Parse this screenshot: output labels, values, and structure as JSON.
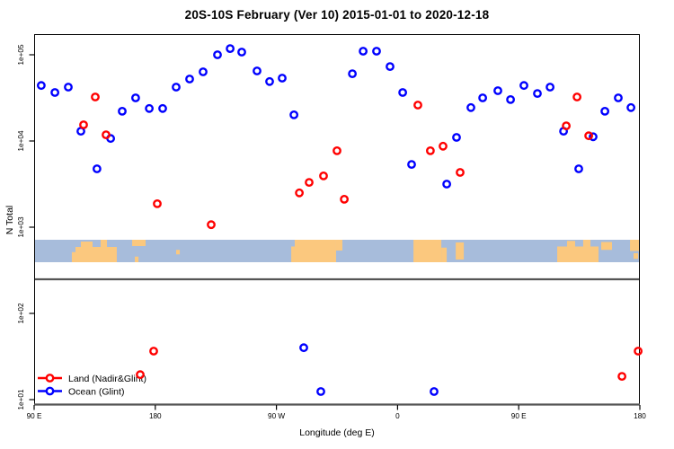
{
  "title": "20S-10S February (Ver 10)   2015-01-01 to 2020-12-18",
  "x_axis": {
    "label": "Longitude (deg E)",
    "ticks": [
      {
        "label": "90 E",
        "lon": 90
      },
      {
        "label": "180",
        "lon": 180
      },
      {
        "label": "90 W",
        "lon": 270
      },
      {
        "label": "0",
        "lon": 360
      },
      {
        "label": "90 E",
        "lon": 450
      },
      {
        "label": "180",
        "lon": 540
      }
    ]
  },
  "y_axis": {
    "label": "N Total",
    "ticks": [
      {
        "label": "1e+05",
        "value": 100000
      },
      {
        "label": "1e+04",
        "value": 10000
      },
      {
        "label": "1e+03",
        "value": 1000
      },
      {
        "label": "1e+02",
        "value": 100
      },
      {
        "label": "1e+01",
        "value": 10
      }
    ]
  },
  "legend": [
    {
      "label": "Land (Nadir&Glint)",
      "color": "#ff0000"
    },
    {
      "label": "Ocean (Glint)",
      "color": "#0000ff"
    }
  ],
  "colors": {
    "land_series": "#ff0000",
    "ocean_series": "#0000ff",
    "map_ocean": "#a7bcdb",
    "map_land": "#fbc87e",
    "axis": "#000000",
    "separator": "#555555"
  },
  "map_strip": {
    "note": "land blocks as [lon0, lon1, fracTop, fracBottom] within the strip band",
    "land_blocks": [
      [
        118.0,
        120.7,
        0.55,
        1.0
      ],
      [
        120.7,
        151.4,
        0.32,
        1.0
      ],
      [
        124.7,
        133.4,
        0.08,
        0.32
      ],
      [
        139.4,
        144.1,
        0.0,
        0.32
      ],
      [
        162.8,
        172.8,
        0.0,
        0.28
      ],
      [
        164.8,
        167.5,
        0.75,
        1.0
      ],
      [
        195.5,
        198.2,
        0.45,
        0.65
      ],
      [
        281.0,
        283.6,
        0.3,
        1.0
      ],
      [
        283.6,
        314.3,
        0.0,
        1.0
      ],
      [
        314.3,
        319.0,
        0.0,
        0.48
      ],
      [
        371.8,
        392.5,
        0.0,
        1.0
      ],
      [
        392.5,
        396.5,
        0.35,
        1.0
      ],
      [
        403.2,
        409.2,
        0.12,
        0.88
      ],
      [
        478.6,
        509.3,
        0.3,
        1.0
      ],
      [
        485.9,
        491.9,
        0.05,
        0.3
      ],
      [
        497.9,
        503.3,
        0.0,
        0.3
      ],
      [
        511.3,
        519.3,
        0.1,
        0.45
      ],
      [
        532.7,
        540.0,
        0.0,
        0.5
      ],
      [
        535.3,
        538.7,
        0.6,
        0.85
      ]
    ]
  },
  "chart_data": {
    "type": "scatter",
    "title": "20S-10S February (Ver 10)   2015-01-01 to 2020-12-18",
    "xlabel": "Longitude (deg E)",
    "ylabel": "N Total",
    "x_axis_degrees": [
      90,
      540
    ],
    "log_y": true,
    "y_tick_values": [
      10,
      100,
      1000,
      10000,
      100000
    ],
    "legend_position": "bottom-left",
    "series": [
      {
        "name": "Land (Nadir&Glint)",
        "color": "#ff0000",
        "points": [
          [
            126.7,
            15400
          ],
          [
            135.4,
            32400
          ],
          [
            143.4,
            11800
          ],
          [
            181.5,
            1870
          ],
          [
            221.5,
            1070
          ],
          [
            287.0,
            2500
          ],
          [
            294.3,
            3310
          ],
          [
            305.0,
            3930
          ],
          [
            315.0,
            7700
          ],
          [
            320.4,
            2110
          ],
          [
            375.1,
            26100
          ],
          [
            384.4,
            7700
          ],
          [
            393.8,
            8700
          ],
          [
            406.5,
            4320
          ],
          [
            485.3,
            15000
          ],
          [
            493.3,
            32400
          ],
          [
            502.0,
            11500
          ],
          [
            168.8,
            19.5
          ],
          [
            178.8,
            36.5
          ],
          [
            526.7,
            18.6
          ],
          [
            538.7,
            36.5
          ]
        ]
      },
      {
        "name": "Ocean (Glint)",
        "color": "#0000ff",
        "points": [
          [
            95.3,
            44000
          ],
          [
            105.4,
            36500
          ],
          [
            115.4,
            42200
          ],
          [
            124.7,
            13000
          ],
          [
            136.7,
            4750
          ],
          [
            146.8,
            10700
          ],
          [
            155.4,
            22100
          ],
          [
            165.4,
            31600
          ],
          [
            175.5,
            23800
          ],
          [
            185.5,
            23800
          ],
          [
            195.5,
            42200
          ],
          [
            205.5,
            52300
          ],
          [
            215.5,
            63400
          ],
          [
            226.2,
            100000
          ],
          [
            235.6,
            118000
          ],
          [
            244.2,
            107500
          ],
          [
            255.6,
            64900
          ],
          [
            264.9,
            48900
          ],
          [
            274.3,
            53600
          ],
          [
            283.0,
            20100
          ],
          [
            326.4,
            60300
          ],
          [
            334.4,
            110100
          ],
          [
            344.4,
            110100
          ],
          [
            354.4,
            73100
          ],
          [
            363.8,
            36500
          ],
          [
            370.4,
            5350
          ],
          [
            396.5,
            3160
          ],
          [
            403.8,
            11000
          ],
          [
            414.5,
            24400
          ],
          [
            423.2,
            31600
          ],
          [
            434.5,
            38300
          ],
          [
            443.9,
            30200
          ],
          [
            453.9,
            44000
          ],
          [
            463.9,
            35600
          ],
          [
            473.3,
            42200
          ],
          [
            483.3,
            13000
          ],
          [
            494.6,
            4750
          ],
          [
            505.3,
            11200
          ],
          [
            514.0,
            22100
          ],
          [
            524.0,
            31600
          ],
          [
            533.4,
            24400
          ],
          [
            290.3,
            40
          ],
          [
            303.0,
            12.4
          ],
          [
            387.1,
            12.4
          ]
        ]
      }
    ]
  }
}
